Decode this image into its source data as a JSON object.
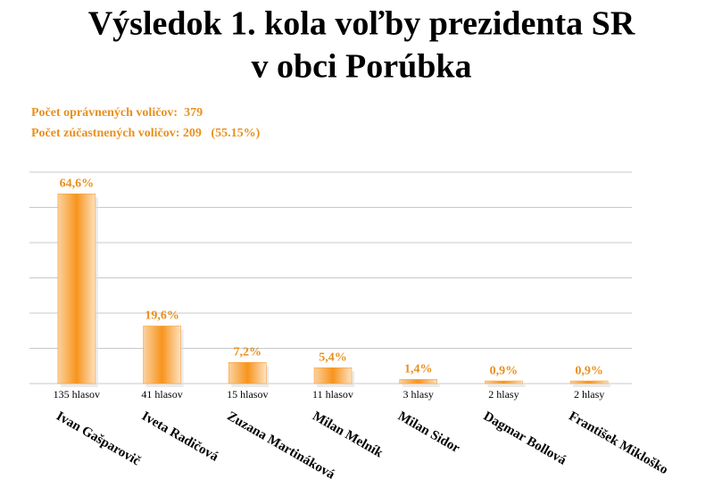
{
  "chart_data": {
    "type": "bar",
    "title": [
      "Výsledok 1. kola voľby prezidenta SR",
      "v obci Porúbka"
    ],
    "subtitle": [
      "Počet oprávnených voličov:  379",
      "Počet zúčastnených voličov: 209   (55.15%)"
    ],
    "categories": [
      "Ivan Gašparovič",
      "Iveta Radičová",
      "Zuzana Martináková",
      "Milan Melník",
      "Milan Sidor",
      "Dagmar Bollová",
      "František Mikloško"
    ],
    "values": [
      64.6,
      19.6,
      7.2,
      5.4,
      1.4,
      0.9,
      0.9
    ],
    "value_labels": [
      "64,6%",
      "19,6%",
      "7,2%",
      "5,4%",
      "1,4%",
      "0,9%",
      "0,9%"
    ],
    "vote_labels": [
      "135 hlasov",
      "41 hlasov",
      "15 hlasov",
      "11 hlasov",
      "3 hlasy",
      "2 hlasy",
      "2 hlasy"
    ],
    "color": "#f7941d",
    "ylim": [
      0,
      72
    ],
    "yticks": [
      0,
      12,
      24,
      36,
      48,
      60,
      72
    ],
    "grid": true
  }
}
